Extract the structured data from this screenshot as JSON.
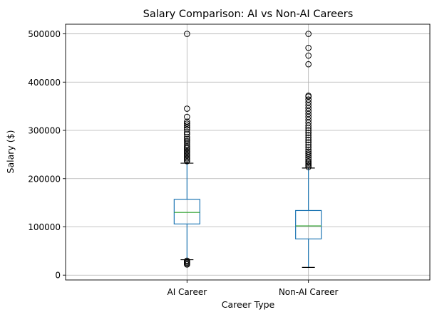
{
  "chart_data": {
    "type": "box",
    "title": "Salary Comparison: AI vs Non-AI Careers",
    "xlabel": "Career Type",
    "ylabel": "Salary ($)",
    "ylim": [
      -10000,
      520000
    ],
    "yticks": [
      0,
      100000,
      200000,
      300000,
      400000,
      500000
    ],
    "grid": true,
    "categories": [
      "AI Career",
      "Non-AI Career"
    ],
    "boxes": [
      {
        "category": "AI Career",
        "whisker_low": 32000,
        "q1": 106000,
        "median": 130000,
        "q3": 157000,
        "whisker_high": 232000,
        "outliers": [
          22000,
          24000,
          26000,
          28000,
          30000,
          236000,
          239000,
          242000,
          245000,
          248000,
          251000,
          254000,
          257000,
          260000,
          263000,
          266000,
          270000,
          274000,
          278000,
          282000,
          286000,
          292000,
          296000,
          302000,
          306000,
          310000,
          314000,
          318000,
          328000,
          345000,
          500000
        ]
      },
      {
        "category": "Non-AI Career",
        "whisker_low": 16000,
        "q1": 75000,
        "median": 102000,
        "q3": 134000,
        "whisker_high": 222000,
        "outliers": [
          224000,
          227000,
          230000,
          233000,
          236000,
          240000,
          244000,
          248000,
          252000,
          256000,
          260000,
          265000,
          270000,
          275000,
          280000,
          285000,
          290000,
          295000,
          300000,
          305000,
          310000,
          316000,
          322000,
          328000,
          334000,
          340000,
          346000,
          352000,
          358000,
          364000,
          370000,
          372000,
          437000,
          455000,
          471000,
          500000
        ]
      }
    ],
    "colors": {
      "box": "#1f77b4",
      "median": "#2ca02c",
      "grid": "#b0b0b0",
      "whisker_cap": "#000000",
      "outlier": "#000000"
    }
  }
}
